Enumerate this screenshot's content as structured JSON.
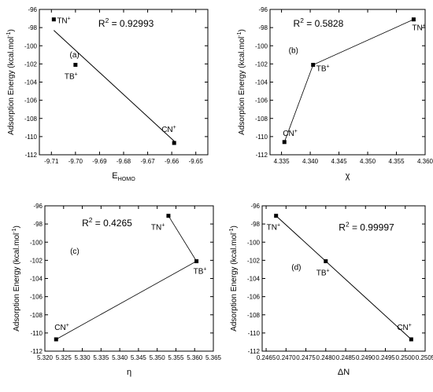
{
  "chart_data": [
    {
      "type": "scatter",
      "panel_label": "(a)",
      "r2_label": "R",
      "r2_superscript": "2",
      "r2_value": "= 0.92993",
      "xlabel_main": "E",
      "xlabel_sub": "HOMO",
      "ylabel": "Adsorption Energy (kcal.mol",
      "ylabel_sup": "-1",
      "ylabel_end": ")",
      "xlim": [
        -9.715,
        -9.645
      ],
      "ylim": [
        -112,
        -96
      ],
      "x_ticks": [
        -9.71,
        -9.7,
        -9.69,
        -9.68,
        -9.67,
        -9.66,
        -9.65
      ],
      "x_tick_labels": [
        "-9.71",
        "-9.70",
        "-9.69",
        "-9.68",
        "-9.67",
        "-9.66",
        "-9.65"
      ],
      "y_ticks": [
        -112,
        -110,
        -108,
        -106,
        -104,
        -102,
        -100,
        -98,
        -96
      ],
      "y_tick_labels": [
        "-112",
        "-110",
        "-108",
        "-106",
        "-104",
        "-102",
        "-100",
        "-98",
        "-96"
      ],
      "points": [
        {
          "label": "TN",
          "sup": "+",
          "x": -9.709,
          "y": -97.1
        },
        {
          "label": "TB",
          "sup": "+",
          "x": -9.7,
          "y": -102.1
        },
        {
          "label": "CN",
          "sup": "+",
          "x": -9.659,
          "y": -110.7
        }
      ],
      "fit_line": [
        {
          "x": -9.709,
          "y": -98.3
        },
        {
          "x": -9.659,
          "y": -110.5
        }
      ],
      "connect_points": false,
      "grid": false
    },
    {
      "type": "line",
      "panel_label": "(b)",
      "r2_label": "R",
      "r2_superscript": "2",
      "r2_value": "= 0.5828",
      "xlabel_main": "χ",
      "xlabel_sub": "",
      "ylabel": "Adsorption Energy (kcal.mol",
      "ylabel_sup": "-1",
      "ylabel_end": ")",
      "xlim": [
        4.333,
        4.36
      ],
      "ylim": [
        -112,
        -96
      ],
      "x_ticks": [
        4.335,
        4.34,
        4.345,
        4.35,
        4.355,
        4.36
      ],
      "x_tick_labels": [
        "4.335",
        "4.340",
        "4.345",
        "4.350",
        "4.355",
        "4.360"
      ],
      "y_ticks": [
        -112,
        -110,
        -108,
        -106,
        -104,
        -102,
        -100,
        -98,
        -96
      ],
      "y_tick_labels": [
        "-112",
        "-110",
        "-108",
        "-106",
        "-104",
        "-102",
        "-100",
        "-98",
        "-96"
      ],
      "points": [
        {
          "label": "CN",
          "sup": "+",
          "x": 4.3355,
          "y": -110.6
        },
        {
          "label": "TB",
          "sup": "+",
          "x": 4.3405,
          "y": -102.1
        },
        {
          "label": "TN",
          "sup": "+",
          "x": 4.358,
          "y": -97.1
        }
      ],
      "connect_points": true,
      "grid": false
    },
    {
      "type": "line",
      "panel_label": "(c)",
      "r2_label": "R",
      "r2_superscript": "2",
      "r2_value": "= 0.4265",
      "xlabel_main": "η",
      "xlabel_sub": "",
      "ylabel": "Adsorption Energy (kcal.mol",
      "ylabel_sup": "-1",
      "ylabel_end": ")",
      "xlim": [
        5.32,
        5.365
      ],
      "ylim": [
        -112,
        -96
      ],
      "x_ticks": [
        5.32,
        5.325,
        5.33,
        5.335,
        5.34,
        5.345,
        5.35,
        5.355,
        5.36,
        5.365
      ],
      "x_tick_labels": [
        "5.320",
        "5.325",
        "5.330",
        "5.335",
        "5.340",
        "5.345",
        "5.350",
        "5.355",
        "5.360",
        "5.365"
      ],
      "y_ticks": [
        -112,
        -110,
        -108,
        -106,
        -104,
        -102,
        -100,
        -98,
        -96
      ],
      "y_tick_labels": [
        "-112",
        "-110",
        "-108",
        "-106",
        "-104",
        "-102",
        "-100",
        "-98",
        "-96"
      ],
      "points": [
        {
          "label": "CN",
          "sup": "+",
          "x": 5.323,
          "y": -110.7
        },
        {
          "label": "TB",
          "sup": "+",
          "x": 5.3605,
          "y": -102.1
        },
        {
          "label": "TN",
          "sup": "+",
          "x": 5.353,
          "y": -97.1
        }
      ],
      "connect_points": true,
      "grid": false
    },
    {
      "type": "scatter",
      "panel_label": "(d)",
      "r2_label": "R",
      "r2_superscript": "2",
      "r2_value": "= 0.99997",
      "xlabel_main": "ΔN",
      "xlabel_sub": "",
      "ylabel": "Adsorption Energy (kcal.mol",
      "ylabel_sup": "-1",
      "ylabel_end": ")",
      "xlim": [
        0.2464,
        0.2505
      ],
      "ylim": [
        -112,
        -96
      ],
      "x_ticks": [
        0.2465,
        0.247,
        0.2475,
        0.248,
        0.2485,
        0.249,
        0.2495,
        0.25,
        0.2505
      ],
      "x_tick_labels": [
        "0.2465",
        "0.2470",
        "0.2475",
        "0.2480",
        "0.2485",
        "0.2490",
        "0.2495",
        "0.2500",
        "0.2505"
      ],
      "y_ticks": [
        -112,
        -110,
        -108,
        -106,
        -104,
        -102,
        -100,
        -98,
        -96
      ],
      "y_tick_labels": [
        "-112",
        "-110",
        "-108",
        "-106",
        "-104",
        "-102",
        "-100",
        "-98",
        "-96"
      ],
      "points": [
        {
          "label": "TN",
          "sup": "+",
          "x": 0.24675,
          "y": -97.1
        },
        {
          "label": "TB",
          "sup": "+",
          "x": 0.248,
          "y": -102.1
        },
        {
          "label": "CN",
          "sup": "+",
          "x": 0.25015,
          "y": -110.7
        }
      ],
      "fit_line": [
        {
          "x": 0.24675,
          "y": -97.1
        },
        {
          "x": 0.25015,
          "y": -110.7
        }
      ],
      "connect_points": false,
      "grid": false
    }
  ]
}
